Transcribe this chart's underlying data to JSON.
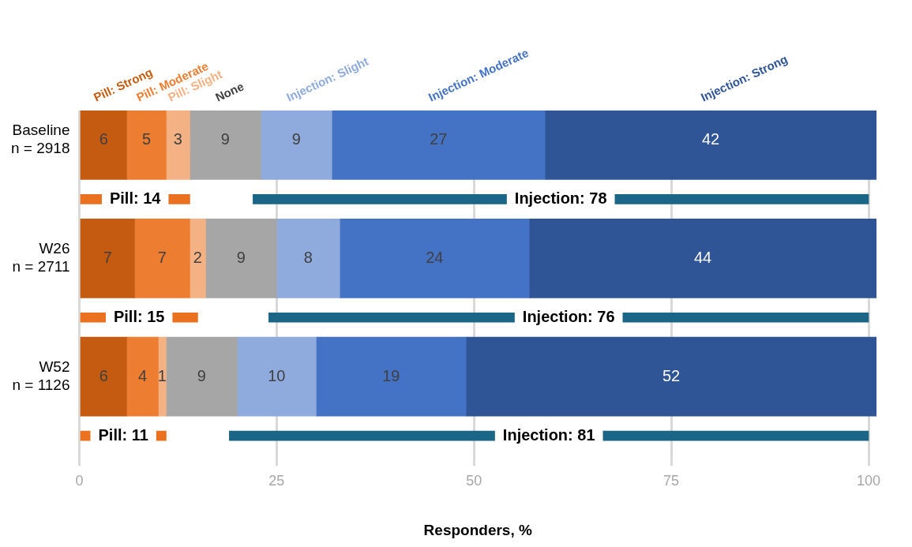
{
  "chart_data": {
    "type": "bar",
    "orientation": "horizontal",
    "xlabel": "Responders, %",
    "categories": [
      "Baseline\nn = 2918",
      null,
      "W26\nn = 2711",
      null,
      "W52\nn = 1126",
      null
    ],
    "xlim": [
      0,
      101
    ],
    "xticks": [
      0,
      25,
      50,
      75,
      100
    ],
    "grid": "x",
    "legend": false,
    "series": [
      {
        "name": "Pill: Strong",
        "color": "#c55a11",
        "values": [
          6,
          null,
          7,
          null,
          6,
          null
        ],
        "base": [
          0,
          null,
          0,
          null,
          0,
          null
        ],
        "value_labels": [
          "6",
          null,
          "7",
          null,
          "6",
          null
        ]
      },
      {
        "name": "Pill: Moderate",
        "color": "#ed7d31",
        "values": [
          5,
          null,
          7,
          null,
          4,
          null
        ],
        "base": [
          6,
          null,
          7,
          null,
          6,
          null
        ],
        "value_labels": [
          "5",
          null,
          "7",
          null,
          "4",
          null
        ]
      },
      {
        "name": "Pill: Slight",
        "color": "#f4b183",
        "values": [
          3,
          null,
          2,
          null,
          1,
          null
        ],
        "base": [
          11,
          null,
          14,
          null,
          10,
          null
        ],
        "value_labels": [
          "3",
          null,
          "2",
          null,
          "1",
          null
        ]
      },
      {
        "name": "None",
        "color": "#a6a6a6",
        "values": [
          9,
          null,
          9,
          null,
          9,
          null
        ],
        "base": [
          14,
          null,
          16,
          null,
          11,
          null
        ],
        "value_labels": [
          "9",
          null,
          "9",
          null,
          "9",
          null
        ]
      },
      {
        "name": "Injection: Slight",
        "color": "#8faadc",
        "values": [
          9,
          null,
          8,
          null,
          10,
          null
        ],
        "base": [
          23,
          null,
          25,
          null,
          20,
          null
        ],
        "value_labels": [
          "9",
          null,
          "8",
          null,
          "10",
          null
        ]
      },
      {
        "name": "Injection: Moderate",
        "color": "#4472c4",
        "values": [
          27,
          null,
          24,
          null,
          19,
          null
        ],
        "base": [
          32,
          null,
          33,
          null,
          30,
          null
        ],
        "value_labels": [
          "27",
          null,
          "24",
          null,
          "19",
          null
        ]
      },
      {
        "name": "Injection: Strong",
        "color": "#2f5597",
        "values": [
          42,
          null,
          44,
          null,
          52,
          null
        ],
        "base": [
          59,
          null,
          57,
          null,
          49,
          null
        ],
        "value_labels": [
          "42",
          null,
          "44",
          null,
          "52",
          null
        ]
      },
      {
        "color": "#e97120",
        "values": [
          null,
          14,
          null,
          15,
          null,
          11
        ],
        "base": [
          null,
          0,
          null,
          0,
          null,
          0
        ],
        "value_labels": [
          null,
          "Pill: 14",
          null,
          "Pill: 15",
          null,
          "Pill: 11"
        ]
      },
      {
        "color": "#1b6586",
        "values": [
          null,
          78,
          null,
          76,
          null,
          81
        ],
        "base": [
          null,
          22,
          null,
          24,
          null,
          19
        ],
        "value_labels": [
          null,
          "Injection: 78",
          null,
          "Injection: 76",
          null,
          "Injection: 81"
        ]
      }
    ]
  }
}
